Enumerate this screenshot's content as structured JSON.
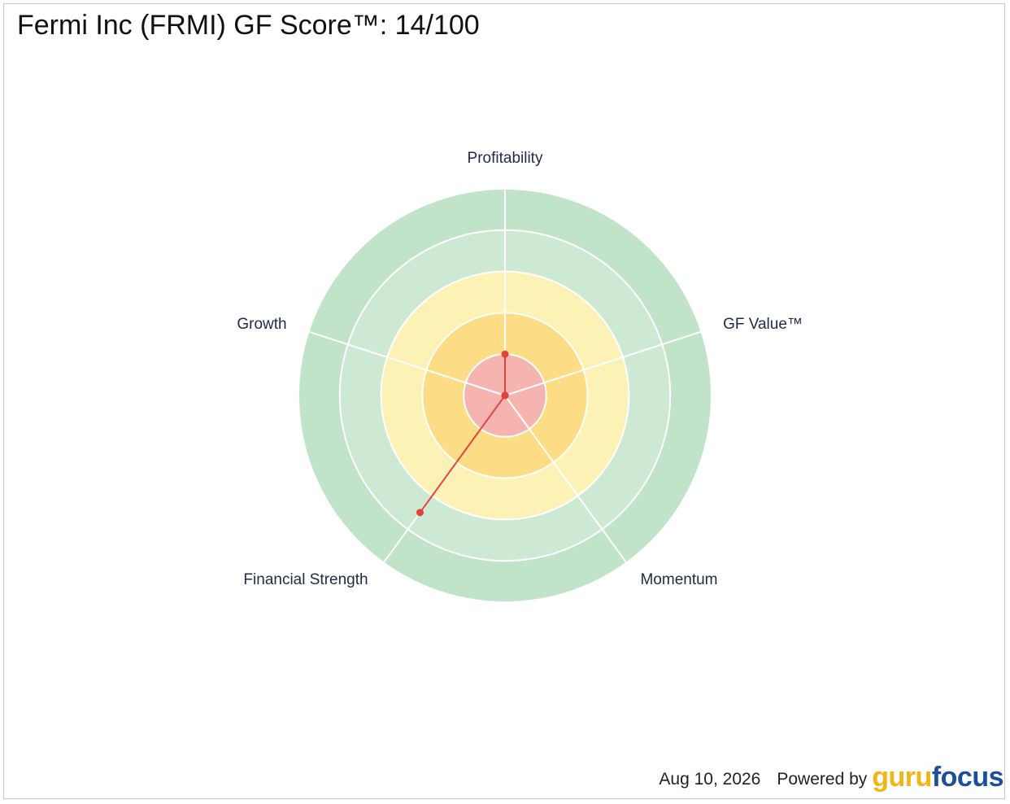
{
  "title": "Fermi Inc (FRMI) GF Score™: 14/100",
  "footer": {
    "date": "Aug 10, 2026",
    "powered_by": "Powered by",
    "logo_part1": "guru",
    "logo_part2": "focus"
  },
  "colors": {
    "ring_red": "#f6b4b0",
    "ring_orange": "#fcdc84",
    "ring_yellow": "#fdf2b6",
    "ring_lightgreen": "#cde9d3",
    "ring_green": "#c0e3c9",
    "score_line": "#e0433a",
    "logo_gold": "#f2b516",
    "logo_blue": "#1b4f9c"
  },
  "chart_data": {
    "type": "radar",
    "max": 10,
    "rings": [
      2,
      4,
      6,
      8,
      10
    ],
    "axes": [
      "Profitability",
      "GF Value™",
      "Momentum",
      "Financial Strength",
      "Growth"
    ],
    "values": [
      2,
      0,
      0,
      7,
      0
    ]
  }
}
